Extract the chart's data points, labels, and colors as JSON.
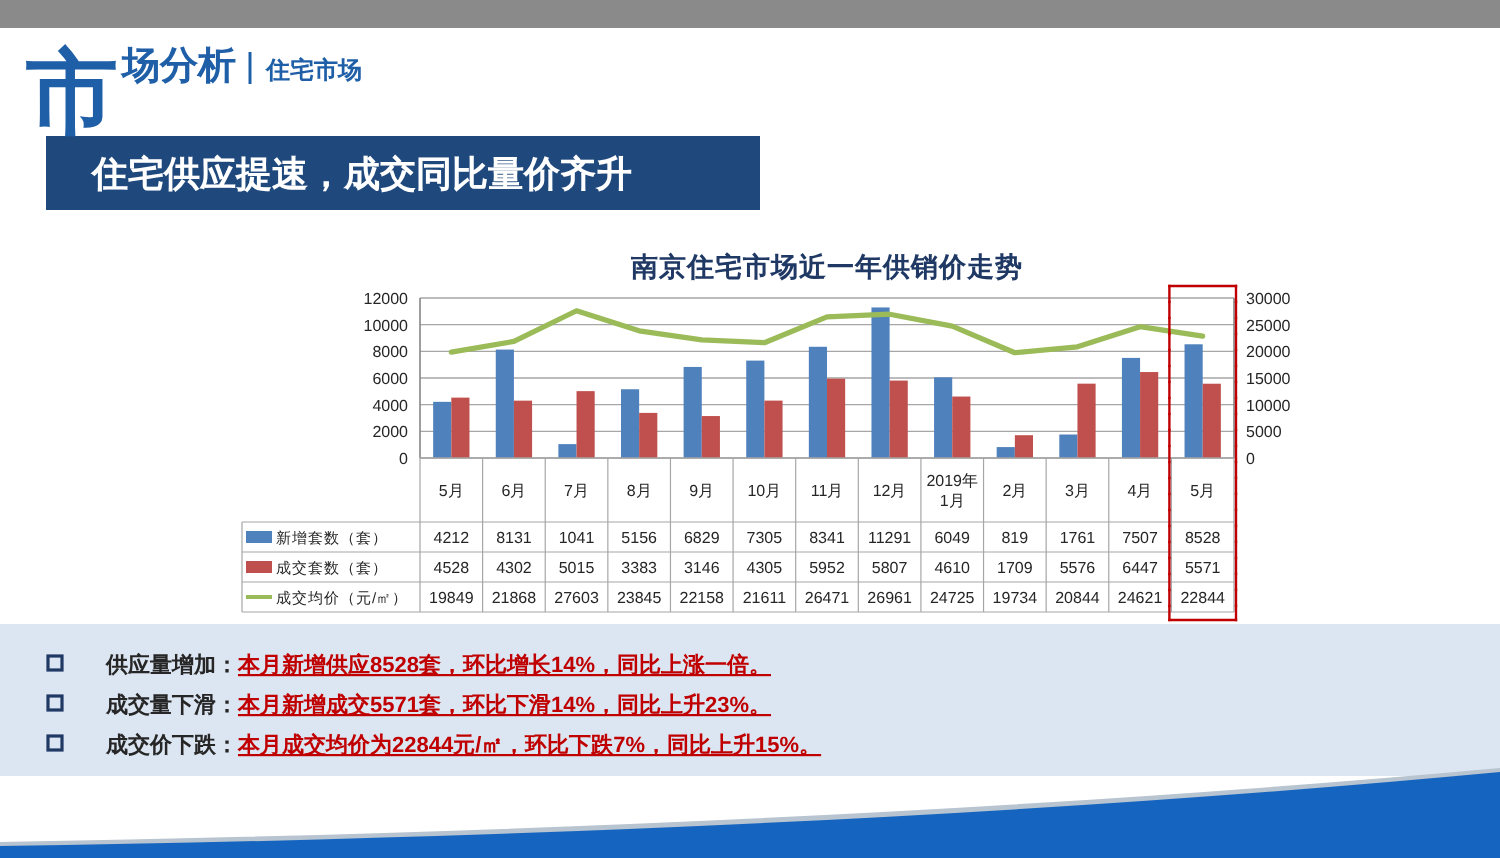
{
  "chart_data": {
    "type": "bar",
    "title": "南京住宅市场近一年供销价走势",
    "categories": [
      "5月",
      "6月",
      "7月",
      "8月",
      "9月",
      "10月",
      "11月",
      "12月",
      "2019年1月",
      "2月",
      "3月",
      "4月",
      "5月"
    ],
    "series": [
      {
        "name": "新增套数（套）",
        "color": "#4f81bd",
        "values": [
          4212,
          8131,
          1041,
          5156,
          6829,
          7305,
          8341,
          11291,
          6049,
          819,
          1761,
          7507,
          8528
        ]
      },
      {
        "name": "成交套数（套）",
        "color": "#c0504d",
        "values": [
          4528,
          4302,
          5015,
          3383,
          3146,
          4305,
          5952,
          5807,
          4610,
          1709,
          5576,
          6447,
          5571
        ]
      },
      {
        "name": "成交均价（元/㎡）",
        "type": "line",
        "axis": "y2",
        "color": "#9bbb59",
        "values": [
          19849,
          21868,
          27603,
          23845,
          22158,
          21611,
          26471,
          26961,
          24725,
          19734,
          20844,
          24621,
          22844
        ]
      }
    ],
    "ylim": [
      0,
      12000
    ],
    "yticks": [
      0,
      2000,
      4000,
      6000,
      8000,
      10000,
      12000
    ],
    "y2lim": [
      0,
      30000
    ],
    "y2ticks": [
      0,
      5000,
      10000,
      15000,
      20000,
      25000,
      30000
    ],
    "grid": "y",
    "legend": "bottom",
    "data_labels": true,
    "annotations": [
      "市场分析",
      "住宅市场",
      "住宅供应提速，成交同比量价齐升",
      "供应量增加：",
      "本月新增供应8528套，环比增长14%，同比上涨一倍。",
      "成交量下滑：",
      "本月新增成交5571套，环比下滑14%，同比上升23%。",
      "成交价下跌：",
      "本月成交均价为22844元/㎡，环比下跌7%，同比上升15%。"
    ]
  }
}
